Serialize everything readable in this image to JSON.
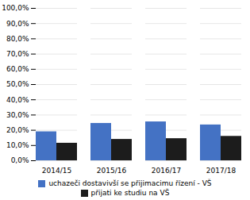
{
  "chart_data": {
    "type": "bar",
    "categories": [
      "2014/15",
      "2015/16",
      "2016/17",
      "2017/18"
    ],
    "series": [
      {
        "name": "uchazeči dostavivší se přijimacimu řízení - VŠ",
        "color": "#4472C4",
        "values": [
          19.0,
          24.5,
          25.5,
          23.5
        ]
      },
      {
        "name": "přijati ke studiu na VŠ",
        "color": "#1c1c1c",
        "values": [
          11.5,
          14.0,
          14.5,
          16.0
        ]
      }
    ],
    "ylim": [
      0,
      100
    ],
    "yticks": [
      {
        "value": 0,
        "label": "0,0%"
      },
      {
        "value": 10,
        "label": "10,0%"
      },
      {
        "value": 20,
        "label": "20,0%"
      },
      {
        "value": 30,
        "label": "30,0%"
      },
      {
        "value": 40,
        "label": "40,0%"
      },
      {
        "value": 50,
        "label": "50,0%"
      },
      {
        "value": 60,
        "label": "60,0%"
      },
      {
        "value": 70,
        "label": "70,0%"
      },
      {
        "value": 80,
        "label": "80,0%"
      },
      {
        "value": 90,
        "label": "90,0%"
      },
      {
        "value": 100,
        "label": "100,0%"
      }
    ],
    "grid": true,
    "legend": "bottom"
  }
}
